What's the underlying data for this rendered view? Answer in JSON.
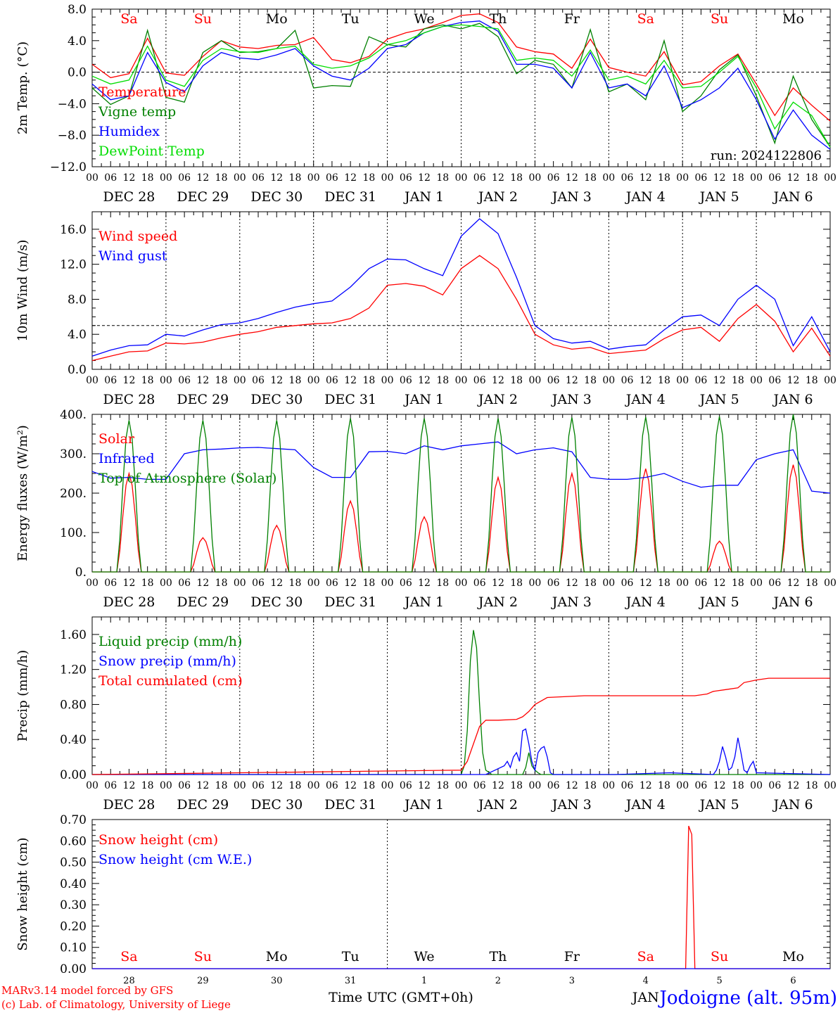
{
  "meta": {
    "run_label": "run: 2024122806",
    "model_credit": "MARv3.14 model forced by GFS",
    "copyright": "(c) Lab. of Climatology, University of Liege",
    "xlabel": "Time UTC (GMT+0h)",
    "station": "Jodoigne (alt. 95m)",
    "bottom_month": "JAN"
  },
  "colors": {
    "red": "#ff0000",
    "green": "#008000",
    "blue": "#0000ff",
    "lightgreen": "#00dd00",
    "weekend": "#ff0000",
    "weekday": "#000000"
  },
  "hours_labels": [
    "00",
    "06",
    "12",
    "18"
  ],
  "days": [
    {
      "dow": "Sa",
      "date": "DEC 28",
      "num": "28",
      "weekend": true
    },
    {
      "dow": "Su",
      "date": "DEC 29",
      "num": "29",
      "weekend": true
    },
    {
      "dow": "Mo",
      "date": "DEC 30",
      "num": "30",
      "weekend": false
    },
    {
      "dow": "Tu",
      "date": "DEC 31",
      "num": "31",
      "weekend": false
    },
    {
      "dow": "We",
      "date": "JAN  1",
      "num": "1",
      "weekend": false
    },
    {
      "dow": "Th",
      "date": "JAN  2",
      "num": "2",
      "weekend": false
    },
    {
      "dow": "Fr",
      "date": "JAN  3",
      "num": "3",
      "weekend": false
    },
    {
      "dow": "Sa",
      "date": "JAN  4",
      "num": "4",
      "weekend": true
    },
    {
      "dow": "Su",
      "date": "JAN  5",
      "num": "5",
      "weekend": true
    },
    {
      "dow": "Mo",
      "date": "JAN  6",
      "num": "6",
      "weekend": false
    }
  ],
  "chart_data": [
    {
      "type": "line",
      "ylabel": "2m Temp. (°C)",
      "ylim": [
        -12,
        8
      ],
      "yticks": [
        8,
        4,
        0,
        -4,
        -8,
        -12
      ],
      "yticklabels": [
        "8.0",
        "4.0",
        "0.0",
        "−4.0",
        "−8.0",
        "−12.0"
      ],
      "ref_line": 0,
      "series": [
        {
          "name": "Temperature",
          "color": "#ff0000",
          "x": [
            0,
            6,
            12,
            18,
            24,
            30,
            36,
            42,
            48,
            54,
            60,
            66,
            72,
            78,
            84,
            90,
            96,
            102,
            108,
            114,
            120,
            126,
            132,
            138,
            144,
            150,
            156,
            162,
            168,
            174,
            180,
            186,
            192,
            198,
            204,
            210,
            216,
            222,
            228,
            234,
            240
          ],
          "values": [
            1.0,
            -0.7,
            -0.2,
            4.3,
            -0.1,
            -0.4,
            2.0,
            4.0,
            3.2,
            3.0,
            3.4,
            3.5,
            4.4,
            1.6,
            1.2,
            2.0,
            4.2,
            5.0,
            5.5,
            6.3,
            7.2,
            7.4,
            6.3,
            3.2,
            2.6,
            2.3,
            0.5,
            4.2,
            0.6,
            0.0,
            -0.5,
            2.6,
            -1.6,
            -1.2,
            0.8,
            2.3,
            -1.5,
            -5.5,
            -2.0,
            -4.2,
            -6.2
          ]
        },
        {
          "name": "Vigne temp",
          "color": "#008000",
          "x": [
            0,
            6,
            12,
            18,
            24,
            30,
            36,
            42,
            48,
            54,
            60,
            66,
            72,
            78,
            84,
            90,
            96,
            102,
            108,
            114,
            120,
            126,
            132,
            138,
            144,
            150,
            156,
            162,
            168,
            174,
            180,
            186,
            192,
            198,
            204,
            210,
            216,
            222,
            228,
            234,
            240
          ],
          "values": [
            -2.0,
            -4.1,
            -3.0,
            5.3,
            -3.2,
            -3.8,
            2.5,
            4.0,
            2.5,
            2.6,
            3.0,
            5.3,
            -2.0,
            -1.7,
            -1.8,
            4.5,
            3.5,
            3.2,
            5.5,
            6.0,
            5.5,
            6.2,
            4.5,
            -0.2,
            1.5,
            1.0,
            -2.0,
            5.4,
            -2.5,
            -1.5,
            -3.5,
            4.0,
            -5.0,
            -3.0,
            0.3,
            2.2,
            -3.0,
            -9.0,
            -0.5,
            -6.0,
            -9.5
          ]
        },
        {
          "name": "Humidex",
          "color": "#0000ff",
          "x": [
            0,
            6,
            12,
            18,
            24,
            30,
            36,
            42,
            48,
            54,
            60,
            66,
            72,
            78,
            84,
            90,
            96,
            102,
            108,
            114,
            120,
            126,
            132,
            138,
            144,
            150,
            156,
            162,
            168,
            174,
            180,
            186,
            192,
            198,
            204,
            210,
            216,
            222,
            228,
            234,
            240
          ],
          "values": [
            -1.5,
            -3.5,
            -3.0,
            2.5,
            -1.3,
            -2.5,
            0.8,
            2.5,
            1.8,
            1.6,
            2.2,
            3.0,
            0.8,
            -0.5,
            -1.0,
            0.5,
            3.0,
            3.5,
            5.0,
            5.8,
            6.3,
            6.5,
            5.2,
            1.0,
            1.0,
            0.5,
            -2.0,
            2.5,
            -2.0,
            -1.5,
            -3.0,
            0.8,
            -4.5,
            -3.5,
            -2.0,
            0.5,
            -3.5,
            -8.5,
            -4.8,
            -8.0,
            -9.8
          ]
        },
        {
          "name": "DewPoint Temp",
          "color": "#00dd00",
          "x": [
            0,
            6,
            12,
            18,
            24,
            30,
            36,
            42,
            48,
            54,
            60,
            66,
            72,
            78,
            84,
            90,
            96,
            102,
            108,
            114,
            120,
            126,
            132,
            138,
            144,
            150,
            156,
            162,
            168,
            174,
            180,
            186,
            192,
            198,
            204,
            210,
            216,
            222,
            228,
            234,
            240
          ],
          "values": [
            -0.5,
            -1.5,
            -1.0,
            3.3,
            -1.0,
            -1.8,
            1.5,
            3.0,
            2.6,
            2.5,
            3.0,
            3.3,
            1.0,
            0.5,
            0.8,
            1.8,
            3.5,
            4.0,
            5.0,
            5.8,
            6.0,
            5.8,
            5.5,
            1.5,
            1.8,
            1.5,
            -0.5,
            2.8,
            -1.0,
            -0.5,
            -1.5,
            1.5,
            -2.0,
            -1.8,
            0.0,
            2.0,
            -2.0,
            -7.2,
            -3.8,
            -5.5,
            -9.5
          ]
        }
      ]
    },
    {
      "type": "line",
      "ylabel": "10m Wind (m/s)",
      "ylim": [
        0,
        18
      ],
      "yticks": [
        16,
        12,
        8,
        4,
        0
      ],
      "yticklabels": [
        "16.0",
        "12.0",
        "8.0",
        "4.0",
        "0.0"
      ],
      "ref_line": 5,
      "series": [
        {
          "name": "Wind speed",
          "color": "#ff0000",
          "x": [
            0,
            6,
            12,
            18,
            24,
            30,
            36,
            42,
            48,
            54,
            60,
            66,
            72,
            78,
            84,
            90,
            96,
            102,
            108,
            114,
            120,
            126,
            132,
            138,
            144,
            150,
            156,
            162,
            168,
            174,
            180,
            186,
            192,
            198,
            204,
            210,
            216,
            222,
            228,
            234,
            240
          ],
          "values": [
            1.0,
            1.5,
            2.0,
            2.1,
            3.0,
            2.9,
            3.1,
            3.6,
            4.0,
            4.3,
            4.8,
            5.0,
            5.2,
            5.3,
            5.8,
            7.0,
            9.6,
            9.8,
            9.5,
            8.5,
            11.5,
            13.0,
            11.5,
            8.0,
            4.0,
            2.8,
            2.3,
            2.5,
            1.8,
            2.0,
            2.2,
            3.5,
            4.5,
            4.8,
            3.2,
            5.8,
            7.4,
            5.5,
            2.0,
            4.7,
            1.5
          ]
        },
        {
          "name": "Wind gust",
          "color": "#0000ff",
          "x": [
            0,
            6,
            12,
            18,
            24,
            30,
            36,
            42,
            48,
            54,
            60,
            66,
            72,
            78,
            84,
            90,
            96,
            102,
            108,
            114,
            120,
            126,
            132,
            138,
            144,
            150,
            156,
            162,
            168,
            174,
            180,
            186,
            192,
            198,
            204,
            210,
            216,
            222,
            228,
            234,
            240
          ],
          "values": [
            1.5,
            2.2,
            2.7,
            2.8,
            4.0,
            3.8,
            4.5,
            5.1,
            5.3,
            5.8,
            6.5,
            7.1,
            7.5,
            7.8,
            9.4,
            11.5,
            12.6,
            12.5,
            11.5,
            10.7,
            15.2,
            17.2,
            15.5,
            10.5,
            5.0,
            3.5,
            3.0,
            3.2,
            2.3,
            2.6,
            2.8,
            4.5,
            6.0,
            6.2,
            5.0,
            8.0,
            9.6,
            8.0,
            2.7,
            6.0,
            2.0
          ]
        }
      ]
    },
    {
      "type": "line",
      "ylabel": "Energy fluxes (W/m²)",
      "ylim": [
        0,
        400
      ],
      "yticks": [
        400,
        300,
        200,
        100,
        0
      ],
      "yticklabels": [
        "400.",
        "300.",
        "200.",
        "100.",
        "0."
      ],
      "series": [
        {
          "name": "Solar",
          "color": "#ff0000",
          "day_peaks": [
            250,
            87,
            118,
            180,
            140,
            240,
            250,
            262,
            78,
            272
          ]
        },
        {
          "name": "Infrared",
          "color": "#0000ff",
          "x": [
            0,
            6,
            12,
            18,
            24,
            30,
            36,
            42,
            48,
            54,
            60,
            66,
            72,
            78,
            84,
            90,
            96,
            102,
            108,
            114,
            120,
            126,
            132,
            138,
            144,
            150,
            156,
            162,
            168,
            174,
            180,
            186,
            192,
            198,
            204,
            210,
            216,
            222,
            228,
            234,
            240
          ],
          "values": [
            255,
            238,
            240,
            235,
            235,
            300,
            310,
            312,
            315,
            316,
            313,
            310,
            265,
            240,
            240,
            305,
            306,
            300,
            320,
            310,
            320,
            325,
            330,
            300,
            310,
            315,
            305,
            240,
            235,
            235,
            240,
            250,
            230,
            215,
            220,
            220,
            285,
            300,
            310,
            205,
            200
          ]
        },
        {
          "name": "Top of Atmosphere (Solar)",
          "color": "#008000",
          "day_peaks": [
            385,
            385,
            385,
            390,
            390,
            390,
            392,
            393,
            395,
            400
          ]
        }
      ]
    },
    {
      "type": "line",
      "ylabel": "Precip (mm/h)",
      "ylim": [
        0,
        1.8
      ],
      "yticks": [
        1.6,
        1.2,
        0.8,
        0.4,
        0.0
      ],
      "yticklabels": [
        "1.60",
        "1.20",
        "0.80",
        "0.40",
        "0.00"
      ],
      "series": [
        {
          "name": "Liquid precip (mm/h)",
          "color": "#008000",
          "x": [
            0,
            118,
            120,
            121,
            122,
            123,
            124,
            125,
            126,
            127,
            128,
            130,
            132,
            135,
            140,
            141,
            142,
            143,
            144,
            145,
            146,
            150,
            200,
            208,
            240
          ],
          "values": [
            0,
            0,
            0,
            0.1,
            0.5,
            1.3,
            1.65,
            1.45,
            0.8,
            0.25,
            0.05,
            0,
            0,
            0,
            0,
            0.08,
            0.25,
            0.1,
            0.05,
            0.02,
            0,
            0,
            0,
            0,
            0
          ]
        },
        {
          "name": "Snow precip (mm/h)",
          "color": "#0000ff",
          "x": [
            0,
            120,
            128,
            131,
            134,
            135,
            136,
            137,
            138,
            139,
            140,
            141,
            142,
            143,
            144,
            145,
            146,
            147,
            148,
            149,
            150,
            170,
            188,
            202,
            203,
            204,
            205,
            206,
            207,
            208,
            209,
            210,
            211,
            212,
            213,
            214,
            215,
            216,
            240
          ],
          "values": [
            0,
            0,
            0,
            0.05,
            0.1,
            0.15,
            0.08,
            0.2,
            0.25,
            0.15,
            0.5,
            0.52,
            0.35,
            0.15,
            0.05,
            0.25,
            0.3,
            0.32,
            0.2,
            0.02,
            0,
            0,
            0.02,
            0,
            0.05,
            0.15,
            0.32,
            0.2,
            0.05,
            0.08,
            0.2,
            0.42,
            0.25,
            0.05,
            0.02,
            0.1,
            0.15,
            0.02,
            0
          ]
        },
        {
          "name": "Total cumulated (cm)",
          "color": "#ff0000",
          "x": [
            0,
            24,
            48,
            72,
            96,
            120,
            122,
            124,
            126,
            128,
            132,
            138,
            140,
            142,
            144,
            148,
            160,
            180,
            192,
            196,
            200,
            202,
            206,
            210,
            212,
            216,
            220,
            240
          ],
          "values": [
            0,
            0.01,
            0.02,
            0.03,
            0.04,
            0.05,
            0.15,
            0.35,
            0.55,
            0.62,
            0.62,
            0.63,
            0.66,
            0.72,
            0.8,
            0.88,
            0.9,
            0.9,
            0.9,
            0.9,
            0.92,
            0.95,
            0.97,
            0.99,
            1.05,
            1.08,
            1.1,
            1.1
          ]
        }
      ]
    },
    {
      "type": "line",
      "ylabel": "Snow height (cm)",
      "ylim": [
        0,
        0.7
      ],
      "yticks": [
        0.7,
        0.6,
        0.5,
        0.4,
        0.3,
        0.2,
        0.1,
        0.0
      ],
      "yticklabels": [
        "0.70",
        "0.60",
        "0.50",
        "0.40",
        "0.30",
        "0.20",
        "0.10",
        "0.00"
      ],
      "series": [
        {
          "name": "Snow height (cm)",
          "color": "#ff0000",
          "x": [
            0,
            193,
            194,
            195,
            196,
            197,
            240
          ],
          "values": [
            0,
            0,
            0.67,
            0.63,
            0,
            0,
            0
          ]
        },
        {
          "name": "Snow height (cm W.E.)",
          "color": "#0000ff",
          "x": [
            0,
            240
          ],
          "values": [
            0,
            0
          ]
        }
      ]
    }
  ]
}
